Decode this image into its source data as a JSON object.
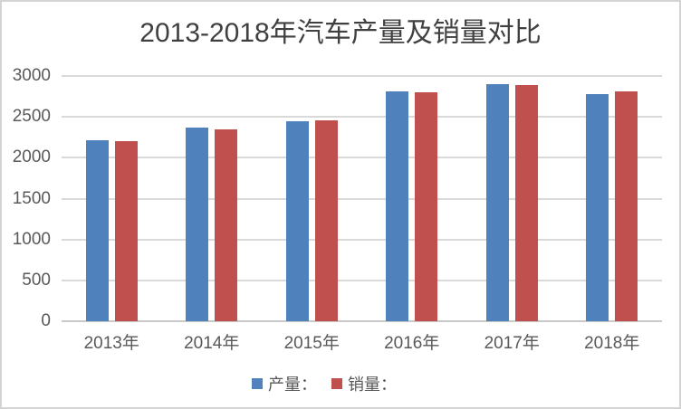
{
  "chart_data": {
    "type": "bar",
    "title": "2013-2018年汽车产量及销量对比",
    "categories": [
      "2013年",
      "2014年",
      "2015年",
      "2016年",
      "2017年",
      "2018年"
    ],
    "series": [
      {
        "key": "production",
        "name": "产量：",
        "color": "#4F81BD",
        "values": [
          2212,
          2372,
          2450,
          2812,
          2902,
          2781
        ]
      },
      {
        "key": "sales",
        "name": "销量：",
        "color": "#C0504D",
        "values": [
          2198,
          2349,
          2460,
          2803,
          2888,
          2808
        ]
      }
    ],
    "y_ticks": [
      3000,
      2500,
      2000,
      1500,
      1000,
      500,
      0
    ],
    "ylim": [
      0,
      3000
    ],
    "xlabel": "",
    "ylabel": "",
    "grid": true,
    "legend_position": "bottom",
    "colors": {
      "title": "#404040",
      "axis_label": "#595959",
      "gridline": "#D9D9D9",
      "axis_line": "#C9C9C9",
      "frame_border": "#D4D4D4",
      "background": "#FFFFFF"
    }
  }
}
